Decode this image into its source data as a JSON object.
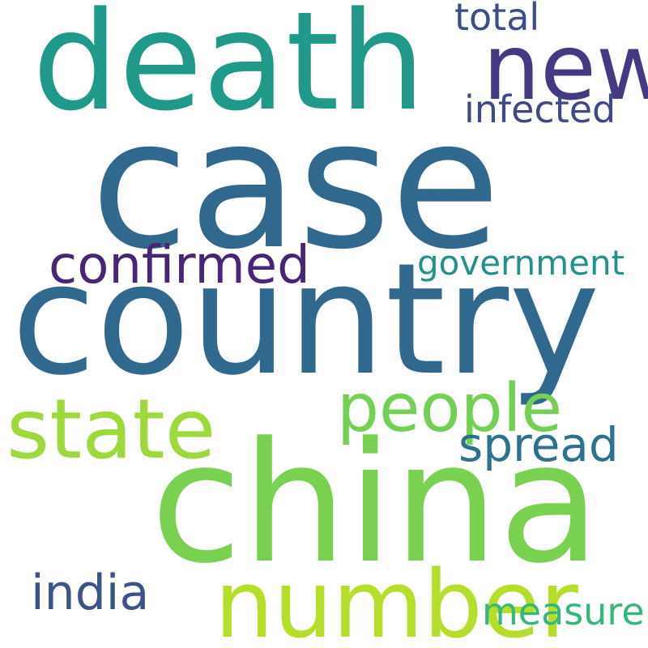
{
  "words": {
    "case": {
      "text": "case",
      "color": "#31688e"
    },
    "death": {
      "text": "death",
      "color": "#21998a"
    },
    "new": {
      "text": "new",
      "color": "#443983"
    },
    "total": {
      "text": "total",
      "color": "#3b4d8a"
    },
    "infected": {
      "text": "infected",
      "color": "#3f4889"
    },
    "confirmed": {
      "text": "confirmed",
      "color": "#482576"
    },
    "government": {
      "text": "government",
      "color": "#21918c"
    },
    "country": {
      "text": "country",
      "color": "#31688e"
    },
    "state": {
      "text": "state",
      "color": "#9dd93b"
    },
    "people": {
      "text": "people",
      "color": "#73d055"
    },
    "spread": {
      "text": "spread",
      "color": "#2c728e"
    },
    "china": {
      "text": "china",
      "color": "#7ad151"
    },
    "number": {
      "text": "number",
      "color": "#b5de2b"
    },
    "india": {
      "text": "india",
      "color": "#3b528b"
    },
    "measure": {
      "text": "measure",
      "color": "#35b779"
    }
  }
}
